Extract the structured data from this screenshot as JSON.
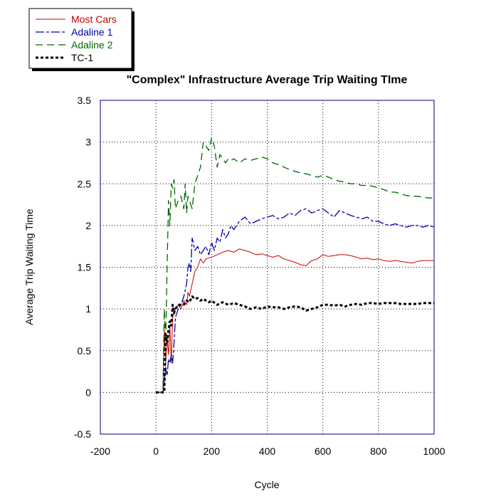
{
  "chart_data": {
    "type": "line",
    "title": "\"Complex\" Infrastructure Average Trip Waiting TIme",
    "xlabel": "Cycle",
    "ylabel": "Average Trip Waiting Time",
    "xlim": [
      -200,
      1000
    ],
    "ylim": [
      -0.5,
      3.5
    ],
    "xticks": [
      -200,
      0,
      200,
      400,
      600,
      800,
      1000
    ],
    "yticks": [
      -0.5,
      0,
      0.5,
      1,
      1.5,
      2,
      2.5,
      3,
      3.5
    ],
    "grid": true,
    "legend_placement": "top-left, outside plot area",
    "series": [
      {
        "name": "Most Cars",
        "color": "#cc0000",
        "dash": "solid",
        "x": [
          0,
          25,
          30,
          35,
          40,
          45,
          50,
          55,
          60,
          65,
          70,
          80,
          90,
          100,
          110,
          115,
          120,
          130,
          140,
          150,
          160,
          170,
          180,
          200,
          220,
          240,
          260,
          280,
          300,
          320,
          340,
          360,
          380,
          400,
          420,
          440,
          460,
          480,
          500,
          520,
          540,
          560,
          580,
          600,
          620,
          640,
          660,
          680,
          700,
          720,
          740,
          760,
          780,
          800,
          820,
          840,
          860,
          880,
          900,
          920,
          940,
          960,
          980,
          1000
        ],
        "y": [
          0,
          0,
          0.75,
          0.35,
          0.65,
          0.45,
          0.8,
          0.35,
          0.9,
          0.95,
          1.0,
          1.05,
          1.0,
          1.1,
          1.05,
          1.2,
          1.15,
          1.3,
          1.45,
          1.5,
          1.6,
          1.55,
          1.6,
          1.62,
          1.65,
          1.68,
          1.7,
          1.68,
          1.72,
          1.7,
          1.68,
          1.65,
          1.66,
          1.64,
          1.62,
          1.64,
          1.6,
          1.58,
          1.56,
          1.53,
          1.52,
          1.58,
          1.6,
          1.65,
          1.63,
          1.64,
          1.65,
          1.65,
          1.64,
          1.62,
          1.6,
          1.61,
          1.59,
          1.6,
          1.58,
          1.57,
          1.58,
          1.57,
          1.56,
          1.55,
          1.57,
          1.58,
          1.58,
          1.58
        ]
      },
      {
        "name": "Adaline 1",
        "color": "#0000aa",
        "dash": "long-short",
        "x": [
          0,
          25,
          30,
          35,
          40,
          45,
          50,
          55,
          60,
          65,
          70,
          80,
          90,
          100,
          110,
          115,
          120,
          125,
          130,
          140,
          150,
          160,
          170,
          180,
          190,
          200,
          210,
          220,
          230,
          240,
          250,
          260,
          270,
          280,
          300,
          320,
          340,
          360,
          380,
          400,
          420,
          440,
          460,
          480,
          500,
          520,
          540,
          560,
          580,
          600,
          620,
          640,
          660,
          680,
          700,
          720,
          740,
          760,
          780,
          800,
          820,
          840,
          860,
          880,
          900,
          920,
          940,
          960,
          980,
          1000
        ],
        "y": [
          0,
          0,
          0.15,
          0.3,
          0.2,
          0.4,
          0.35,
          0.45,
          0.35,
          0.6,
          0.9,
          1.0,
          1.05,
          1.15,
          1.3,
          1.5,
          1.55,
          1.45,
          1.85,
          1.7,
          1.75,
          1.65,
          1.7,
          1.75,
          1.65,
          1.8,
          1.7,
          1.85,
          1.8,
          1.95,
          1.85,
          1.9,
          2.0,
          1.95,
          2.05,
          2.1,
          2.02,
          2.05,
          2.08,
          2.1,
          2.12,
          2.08,
          2.1,
          2.15,
          2.12,
          2.18,
          2.2,
          2.15,
          2.18,
          2.2,
          2.15,
          2.1,
          2.18,
          2.15,
          2.12,
          2.1,
          2.08,
          2.1,
          2.05,
          2.05,
          2.02,
          2.0,
          2.02,
          2.0,
          1.98,
          2.0,
          2.0,
          1.98,
          2.0,
          1.98
        ]
      },
      {
        "name": "Adaline 2",
        "color": "#006600",
        "dash": "long-dash",
        "x": [
          0,
          25,
          30,
          35,
          40,
          45,
          50,
          55,
          60,
          65,
          70,
          80,
          90,
          100,
          105,
          110,
          115,
          120,
          130,
          140,
          150,
          160,
          170,
          180,
          190,
          200,
          210,
          220,
          230,
          240,
          250,
          260,
          270,
          280,
          300,
          320,
          340,
          360,
          380,
          400,
          420,
          440,
          460,
          480,
          500,
          520,
          540,
          560,
          580,
          600,
          620,
          640,
          660,
          680,
          700,
          720,
          740,
          760,
          780,
          800,
          820,
          840,
          860,
          880,
          900,
          920,
          940,
          960,
          980,
          1000
        ],
        "y": [
          0,
          0,
          1.0,
          0.6,
          1.5,
          2.3,
          2.0,
          2.5,
          2.45,
          2.55,
          2.2,
          2.3,
          2.35,
          2.2,
          2.5,
          2.15,
          2.35,
          2.3,
          2.2,
          2.5,
          2.6,
          2.7,
          3.0,
          2.95,
          2.9,
          3.05,
          2.95,
          2.7,
          2.85,
          2.8,
          2.75,
          2.8,
          2.78,
          2.8,
          2.75,
          2.8,
          2.78,
          2.8,
          2.82,
          2.8,
          2.75,
          2.73,
          2.7,
          2.67,
          2.65,
          2.63,
          2.62,
          2.6,
          2.58,
          2.6,
          2.58,
          2.55,
          2.53,
          2.52,
          2.5,
          2.5,
          2.48,
          2.48,
          2.47,
          2.45,
          2.43,
          2.4,
          2.4,
          2.38,
          2.36,
          2.35,
          2.35,
          2.34,
          2.33,
          2.33
        ]
      },
      {
        "name": "TC-1",
        "color": "#000000",
        "dash": "short-dash",
        "x": [
          0,
          25,
          30,
          35,
          40,
          45,
          50,
          55,
          60,
          65,
          70,
          80,
          90,
          100,
          110,
          120,
          130,
          140,
          150,
          160,
          170,
          180,
          190,
          200,
          220,
          240,
          260,
          280,
          300,
          320,
          340,
          360,
          380,
          400,
          420,
          440,
          460,
          480,
          500,
          520,
          540,
          560,
          580,
          600,
          620,
          640,
          660,
          680,
          700,
          720,
          740,
          760,
          780,
          800,
          820,
          840,
          860,
          880,
          900,
          920,
          940,
          960,
          980,
          1000
        ],
        "y": [
          0,
          0,
          0.0,
          0.7,
          0.6,
          0.75,
          0.85,
          0.8,
          1.05,
          0.95,
          1.0,
          1.05,
          1.05,
          1.05,
          1.1,
          1.08,
          1.15,
          1.12,
          1.13,
          1.1,
          1.12,
          1.1,
          1.08,
          1.1,
          1.05,
          1.08,
          1.05,
          1.07,
          1.05,
          1.03,
          1.0,
          1.02,
          1.0,
          1.03,
          1.02,
          1.02,
          1.0,
          1.02,
          1.03,
          1.02,
          0.98,
          1.0,
          1.02,
          1.05,
          1.05,
          1.04,
          1.05,
          1.03,
          1.05,
          1.06,
          1.05,
          1.07,
          1.07,
          1.06,
          1.07,
          1.07,
          1.07,
          1.06,
          1.06,
          1.06,
          1.06,
          1.07,
          1.07,
          1.07
        ]
      }
    ]
  }
}
